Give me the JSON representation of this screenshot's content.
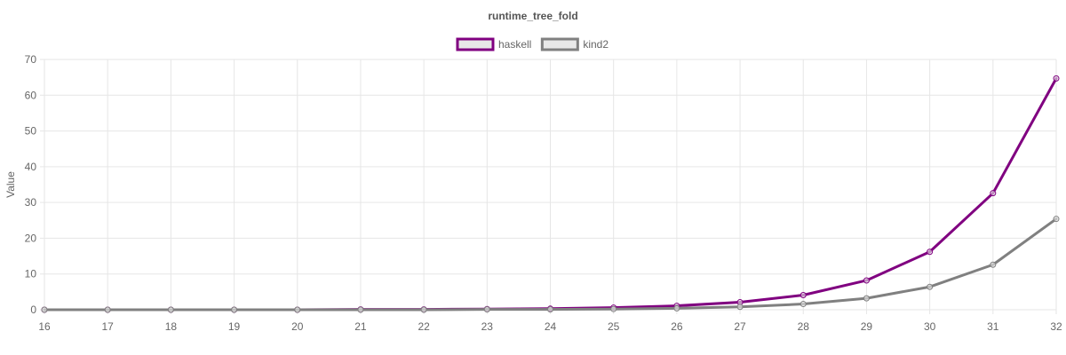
{
  "chart_data": {
    "type": "line",
    "title": "runtime_tree_fold",
    "xlabel": "",
    "ylabel": "Value",
    "x": [
      16,
      17,
      18,
      19,
      20,
      21,
      22,
      23,
      24,
      25,
      26,
      27,
      28,
      29,
      30,
      31,
      32
    ],
    "ylim": [
      0,
      70
    ],
    "yticks": [
      0,
      10,
      20,
      30,
      40,
      50,
      60,
      70
    ],
    "grid": true,
    "legend_position": "top-center",
    "series": [
      {
        "name": "haskell",
        "color": "#800080",
        "values": [
          0.0,
          0.0,
          0.0,
          0.0,
          0.0,
          0.1,
          0.1,
          0.2,
          0.3,
          0.6,
          1.1,
          2.1,
          4.1,
          8.2,
          16.2,
          32.6,
          64.7
        ]
      },
      {
        "name": "kind2",
        "color": "#808080",
        "values": [
          0.0,
          0.0,
          0.0,
          0.0,
          0.0,
          0.0,
          0.0,
          0.1,
          0.1,
          0.2,
          0.4,
          0.8,
          1.6,
          3.2,
          6.4,
          12.6,
          25.4
        ]
      }
    ]
  }
}
